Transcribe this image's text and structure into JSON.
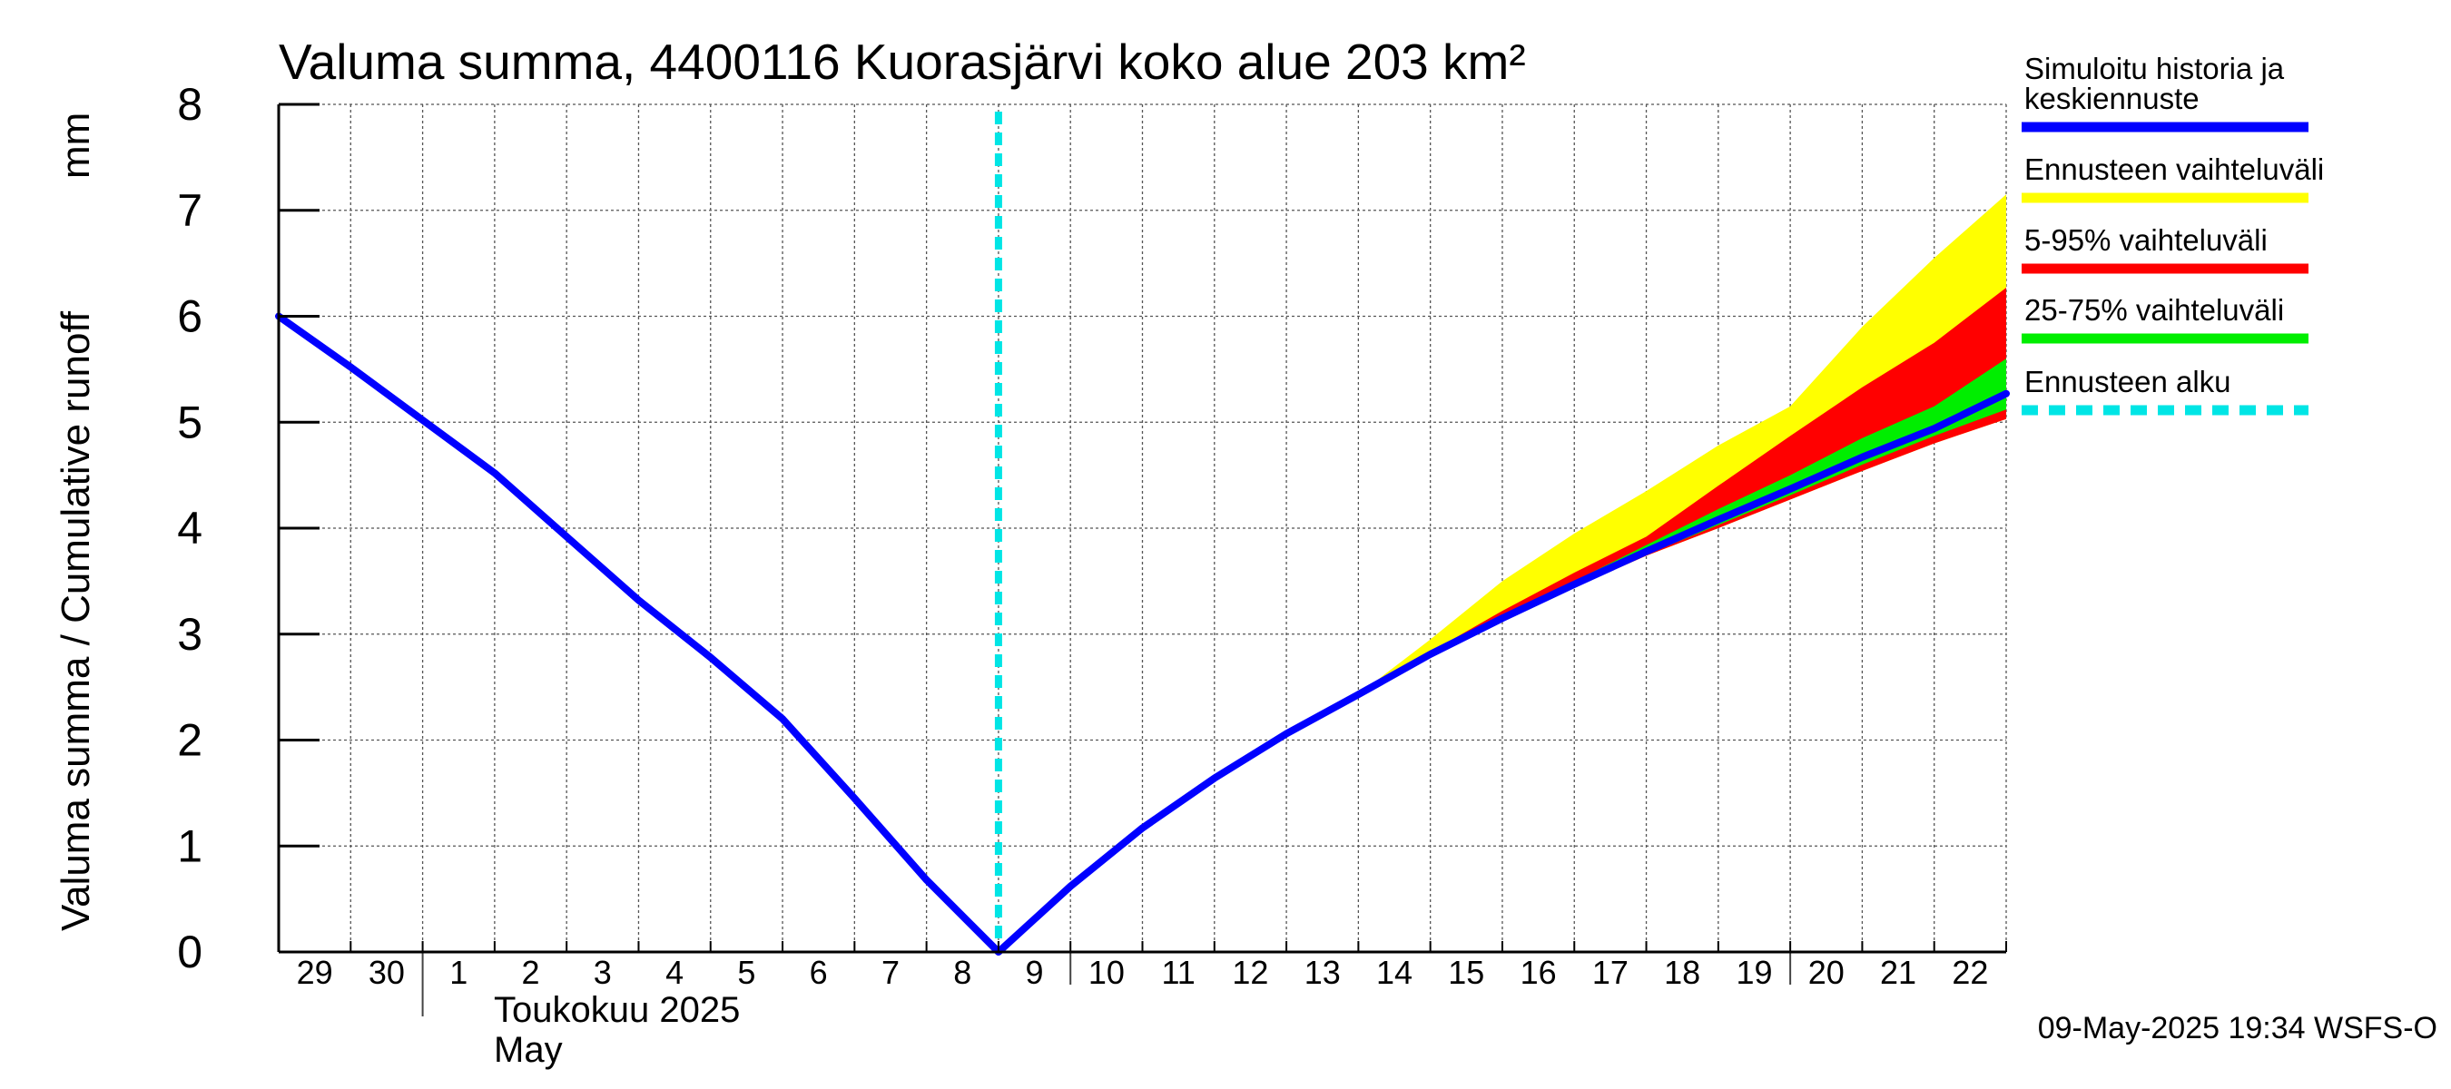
{
  "chart_data": {
    "type": "area",
    "title": "Valuma summa, 4400116 Kuorasjärvi koko alue 203 km²",
    "ylabel": "Valuma summa / Cumulative runoff",
    "yunit": "mm",
    "ylim": [
      0,
      8
    ],
    "yticks": [
      "0",
      "1",
      "2",
      "3",
      "4",
      "5",
      "6",
      "7",
      "8"
    ],
    "x_range": [
      "2025-04-29",
      "2025-05-23"
    ],
    "x_tick_labels": [
      "29",
      "30",
      "1",
      "2",
      "3",
      "4",
      "5",
      "6",
      "7",
      "8",
      "9",
      "10",
      "11",
      "12",
      "13",
      "14",
      "15",
      "16",
      "17",
      "18",
      "19",
      "20",
      "21",
      "22"
    ],
    "month_label_fi": "Toukokuu  2025",
    "month_label_en": "May",
    "grid": true,
    "legend_position": "right",
    "forecast_start": "2025-05-09",
    "series": [
      {
        "name": "Simuloitu historia ja keskiennuste",
        "color": "#0000ff",
        "points": [
          [
            "2025-04-29",
            6.0
          ],
          [
            "2025-04-30",
            5.52
          ],
          [
            "2025-05-01",
            5.02
          ],
          [
            "2025-05-02",
            4.52
          ],
          [
            "2025-05-03",
            3.92
          ],
          [
            "2025-05-04",
            3.32
          ],
          [
            "2025-05-05",
            2.78
          ],
          [
            "2025-05-06",
            2.2
          ],
          [
            "2025-05-07",
            1.45
          ],
          [
            "2025-05-08",
            0.68
          ],
          [
            "2025-05-09",
            0.0
          ],
          [
            "2025-05-10",
            0.62
          ],
          [
            "2025-05-11",
            1.17
          ],
          [
            "2025-05-12",
            1.64
          ],
          [
            "2025-05-13",
            2.06
          ],
          [
            "2025-05-14",
            2.43
          ],
          [
            "2025-05-15",
            2.81
          ],
          [
            "2025-05-16",
            3.15
          ],
          [
            "2025-05-17",
            3.47
          ],
          [
            "2025-05-18",
            3.78
          ],
          [
            "2025-05-19",
            4.08
          ],
          [
            "2025-05-20",
            4.37
          ],
          [
            "2025-05-21",
            4.67
          ],
          [
            "2025-05-22",
            4.94
          ],
          [
            "2025-05-23",
            5.27
          ]
        ]
      },
      {
        "name": "Ennusteen vaihteluväli",
        "color": "#ffff00",
        "upper": [
          [
            "2025-05-14",
            2.43
          ],
          [
            "2025-05-15",
            2.95
          ],
          [
            "2025-05-16",
            3.5
          ],
          [
            "2025-05-17",
            3.95
          ],
          [
            "2025-05-18",
            4.35
          ],
          [
            "2025-05-19",
            4.78
          ],
          [
            "2025-05-20",
            5.15
          ],
          [
            "2025-05-21",
            5.9
          ],
          [
            "2025-05-22",
            6.55
          ],
          [
            "2025-05-23",
            7.15
          ]
        ],
        "lower": [
          [
            "2025-05-14",
            2.43
          ],
          [
            "2025-05-15",
            2.8
          ],
          [
            "2025-05-16",
            3.13
          ],
          [
            "2025-05-17",
            3.44
          ],
          [
            "2025-05-18",
            3.74
          ],
          [
            "2025-05-19",
            4.0
          ],
          [
            "2025-05-20",
            4.27
          ],
          [
            "2025-05-21",
            4.54
          ],
          [
            "2025-05-22",
            4.8
          ],
          [
            "2025-05-23",
            5.03
          ]
        ]
      },
      {
        "name": "5-95% vaihteluväli",
        "color": "#ff0000",
        "upper": [
          [
            "2025-05-15",
            2.83
          ],
          [
            "2025-05-16",
            3.22
          ],
          [
            "2025-05-17",
            3.58
          ],
          [
            "2025-05-18",
            3.92
          ],
          [
            "2025-05-19",
            4.4
          ],
          [
            "2025-05-20",
            4.87
          ],
          [
            "2025-05-21",
            5.33
          ],
          [
            "2025-05-22",
            5.75
          ],
          [
            "2025-05-23",
            6.27
          ]
        ],
        "lower": [
          [
            "2025-05-15",
            2.8
          ],
          [
            "2025-05-16",
            3.13
          ],
          [
            "2025-05-17",
            3.44
          ],
          [
            "2025-05-18",
            3.74
          ],
          [
            "2025-05-19",
            4.0
          ],
          [
            "2025-05-20",
            4.27
          ],
          [
            "2025-05-21",
            4.54
          ],
          [
            "2025-05-22",
            4.8
          ],
          [
            "2025-05-23",
            5.03
          ]
        ]
      },
      {
        "name": "25-75% vaihteluväli",
        "color": "#00ee00",
        "upper": [
          [
            "2025-05-16",
            3.17
          ],
          [
            "2025-05-17",
            3.5
          ],
          [
            "2025-05-18",
            3.84
          ],
          [
            "2025-05-19",
            4.18
          ],
          [
            "2025-05-20",
            4.5
          ],
          [
            "2025-05-21",
            4.85
          ],
          [
            "2025-05-22",
            5.15
          ],
          [
            "2025-05-23",
            5.6
          ]
        ],
        "lower": [
          [
            "2025-05-16",
            3.14
          ],
          [
            "2025-05-17",
            3.45
          ],
          [
            "2025-05-18",
            3.75
          ],
          [
            "2025-05-19",
            4.03
          ],
          [
            "2025-05-20",
            4.31
          ],
          [
            "2025-05-21",
            4.6
          ],
          [
            "2025-05-22",
            4.87
          ],
          [
            "2025-05-23",
            5.12
          ]
        ]
      },
      {
        "name": "Ennusteen alku",
        "color": "#00e5e5",
        "x": "2025-05-09"
      }
    ]
  },
  "footer": {
    "timestamp": "09-May-2025 19:34 WSFS-O"
  }
}
